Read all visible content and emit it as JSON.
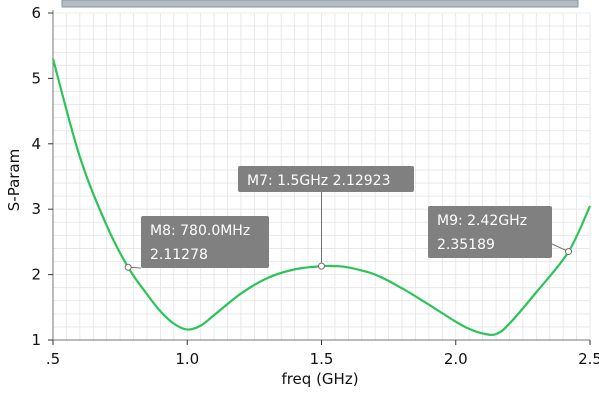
{
  "chart_data": {
    "type": "line",
    "xlabel": "freq (GHz)",
    "ylabel": "S-Param",
    "xlim": [
      0.5,
      2.5
    ],
    "ylim": [
      1,
      6
    ],
    "xticks": [
      {
        "value": 0.5,
        "label": ".5"
      },
      {
        "value": 1.0,
        "label": "1.0"
      },
      {
        "value": 1.5,
        "label": "1.5"
      },
      {
        "value": 2.0,
        "label": "2.0"
      },
      {
        "value": 2.5,
        "label": "2.5"
      }
    ],
    "yticks": [
      {
        "value": 1,
        "label": "1"
      },
      {
        "value": 2,
        "label": "2"
      },
      {
        "value": 3,
        "label": "3"
      },
      {
        "value": 4,
        "label": "4"
      },
      {
        "value": 5,
        "label": "5"
      },
      {
        "value": 6,
        "label": "6"
      }
    ],
    "grid": true,
    "series": [
      {
        "color": "#2bc45a",
        "x": [
          0.5,
          0.6,
          0.7,
          0.78,
          0.85,
          0.9,
          0.95,
          1.0,
          1.05,
          1.1,
          1.2,
          1.3,
          1.4,
          1.5,
          1.55,
          1.6,
          1.7,
          1.8,
          1.9,
          2.0,
          2.05,
          2.1,
          2.15,
          2.2,
          2.3,
          2.42,
          2.5
        ],
        "y": [
          5.3,
          3.8,
          2.75,
          2.11,
          1.7,
          1.44,
          1.25,
          1.16,
          1.22,
          1.38,
          1.71,
          1.95,
          2.08,
          2.13,
          2.13,
          2.11,
          2.0,
          1.79,
          1.54,
          1.28,
          1.17,
          1.1,
          1.09,
          1.25,
          1.73,
          2.35,
          3.05
        ]
      }
    ],
    "markers": [
      {
        "name": "M8",
        "x": 0.78,
        "y": 2.11278,
        "line1": "M8: 780.0MHz",
        "line2": "2.11278"
      },
      {
        "name": "M7",
        "x": 1.5,
        "y": 2.12923,
        "line1": "M7: 1.5GHz 2.12923",
        "line2": ""
      },
      {
        "name": "M9",
        "x": 2.42,
        "y": 2.35189,
        "line1": "M9: 2.42GHz",
        "line2": "2.35189"
      }
    ]
  },
  "colors": {
    "background": "#ffffff",
    "grid": "#e4e4e4",
    "axis": "#777777",
    "marker_box": "#808080",
    "marker_text": "#ffffff"
  }
}
